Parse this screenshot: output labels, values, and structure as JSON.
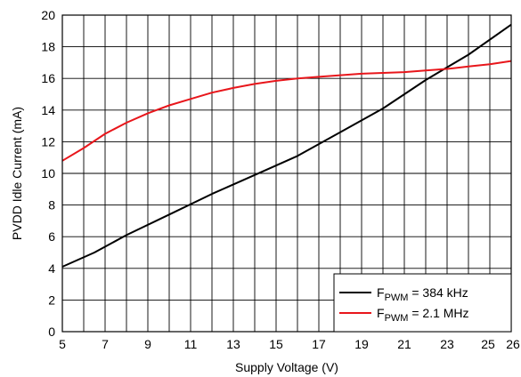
{
  "chart_data": {
    "type": "line",
    "xlabel": "Supply Voltage (V)",
    "ylabel": "PVDD Idle Current (mA)",
    "xlim": [
      5,
      26
    ],
    "ylim": [
      0,
      20
    ],
    "x_ticks": [
      5,
      7,
      9,
      11,
      13,
      15,
      17,
      19,
      21,
      23,
      25,
      26
    ],
    "x_tick_labels": [
      "5",
      "7",
      "9",
      "11",
      "13",
      "15",
      "17",
      "19",
      "21",
      "23",
      "25",
      "26"
    ],
    "y_ticks": [
      0,
      2,
      4,
      6,
      8,
      10,
      12,
      14,
      16,
      18,
      20
    ],
    "y_tick_labels": [
      "0",
      "2",
      "4",
      "6",
      "8",
      "10",
      "12",
      "14",
      "16",
      "18",
      "20"
    ],
    "grid": true,
    "legend_position": "bottom-right",
    "series": [
      {
        "legend_main": "F",
        "legend_sub": "PWM",
        "legend_rest": " = 384 kHz",
        "color": "#000000",
        "x": [
          5,
          6.5,
          8,
          10,
          12,
          14,
          16,
          18,
          20,
          22,
          24,
          26
        ],
        "y": [
          4.1,
          5.0,
          6.1,
          7.4,
          8.7,
          9.9,
          11.1,
          12.6,
          14.1,
          15.9,
          17.5,
          19.4
        ]
      },
      {
        "legend_main": "F",
        "legend_sub": "PWM",
        "legend_rest": " = 2.1 MHz",
        "color": "#e8161b",
        "x": [
          5,
          6,
          7,
          8,
          9,
          10,
          11,
          12,
          13,
          14,
          15,
          16,
          17,
          18,
          19,
          20,
          21,
          22,
          23,
          24,
          25,
          26
        ],
        "y": [
          10.8,
          11.6,
          12.5,
          13.2,
          13.8,
          14.3,
          14.7,
          15.1,
          15.4,
          15.65,
          15.85,
          16.0,
          16.1,
          16.2,
          16.3,
          16.35,
          16.4,
          16.5,
          16.6,
          16.75,
          16.9,
          17.1
        ]
      }
    ]
  }
}
